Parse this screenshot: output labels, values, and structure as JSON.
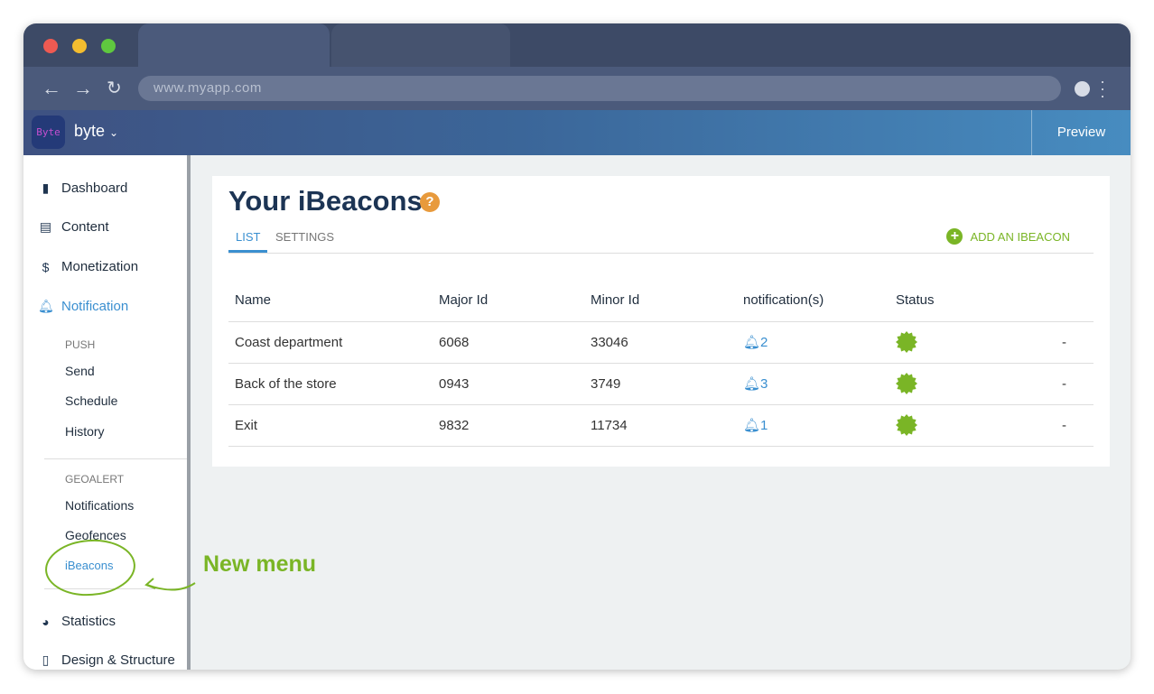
{
  "browser": {
    "url": "www.myapp.com"
  },
  "app": {
    "logo_text": "Byte",
    "brand": "byte",
    "preview_label": "Preview"
  },
  "sidebar": {
    "items": [
      {
        "label": "Dashboard",
        "icon": "bar-chart-icon"
      },
      {
        "label": "Content",
        "icon": "document-icon"
      },
      {
        "label": "Monetization",
        "icon": "dollar-icon"
      },
      {
        "label": "Notification",
        "icon": "bell-icon"
      }
    ],
    "push_header": "PUSH",
    "push_items": [
      "Send",
      "Schedule",
      "History"
    ],
    "geo_header": "GEOALERT",
    "geo_items": [
      "Notifications",
      "Geofences",
      "iBeacons"
    ],
    "bottom_items": [
      {
        "label": "Statistics",
        "icon": "pie-chart-icon"
      },
      {
        "label": "Design & Structure",
        "icon": "phone-icon"
      }
    ]
  },
  "annotation": "New menu",
  "main": {
    "title": "Your iBeacons",
    "help": "?",
    "tabs": [
      "LIST",
      "SETTINGS"
    ],
    "add_label": "ADD AN IBEACON",
    "columns": [
      "Name",
      "Major Id",
      "Minor Id",
      "notification(s)",
      "Status"
    ],
    "rows": [
      {
        "name": "Coast department",
        "major": "6068",
        "minor": "33046",
        "notifications": "2",
        "extra": "-"
      },
      {
        "name": "Back of the store",
        "major": "0943",
        "minor": "3749",
        "notifications": "3",
        "extra": "-"
      },
      {
        "name": "Exit",
        "major": "9832",
        "minor": "11734",
        "notifications": "1",
        "extra": "-"
      }
    ]
  },
  "colors": {
    "accent": "#3a8fd0",
    "green": "#7ab526",
    "header_dark": "#3d4a66"
  }
}
